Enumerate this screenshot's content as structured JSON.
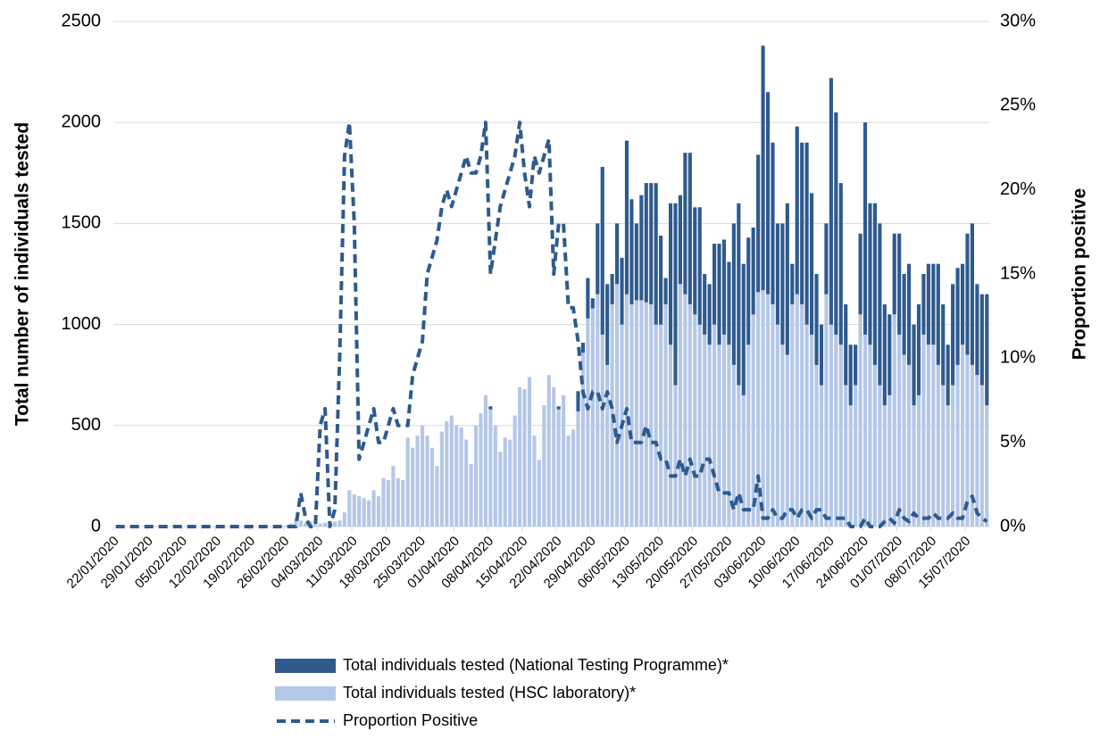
{
  "chart_data": {
    "type": "bar",
    "stacked": true,
    "y_label": "Total number of individuals tested",
    "y2_label": "Proportion positive",
    "categories": [
      "22/01/2020",
      null,
      null,
      null,
      null,
      null,
      null,
      "29/01/2020",
      null,
      null,
      null,
      null,
      null,
      null,
      "05/02/2020",
      null,
      null,
      null,
      null,
      null,
      null,
      "12/02/2020",
      null,
      null,
      null,
      null,
      null,
      null,
      "19/02/2020",
      null,
      null,
      null,
      null,
      null,
      null,
      "26/02/2020",
      null,
      null,
      null,
      null,
      null,
      null,
      "04/03/2020",
      null,
      null,
      null,
      null,
      null,
      null,
      "11/03/2020",
      null,
      null,
      null,
      null,
      null,
      null,
      "18/03/2020",
      null,
      null,
      null,
      null,
      null,
      null,
      "25/03/2020",
      null,
      null,
      null,
      null,
      null,
      null,
      "01/04/2020",
      null,
      null,
      null,
      null,
      null,
      null,
      "08/04/2020",
      null,
      null,
      null,
      null,
      null,
      null,
      "15/04/2020",
      null,
      null,
      null,
      null,
      null,
      null,
      "22/04/2020",
      null,
      null,
      null,
      null,
      null,
      null,
      "29/04/2020",
      null,
      null,
      null,
      null,
      null,
      null,
      "06/05/2020",
      null,
      null,
      null,
      null,
      null,
      null,
      "13/05/2020",
      null,
      null,
      null,
      null,
      null,
      null,
      "20/05/2020",
      null,
      null,
      null,
      null,
      null,
      null,
      "27/05/2020",
      null,
      null,
      null,
      null,
      null,
      null,
      "03/06/2020",
      null,
      null,
      null,
      null,
      null,
      null,
      "10/06/2020",
      null,
      null,
      null,
      null,
      null,
      null,
      "17/06/2020",
      null,
      null,
      null,
      null,
      null,
      null,
      "24/06/2020",
      null,
      null,
      null,
      null,
      null,
      null,
      "01/07/2020",
      null,
      null,
      null,
      null,
      null,
      null,
      "08/07/2020",
      null,
      null,
      null,
      null,
      null,
      null,
      "15/07/2020",
      null,
      null,
      null,
      null
    ],
    "series": [
      {
        "name": "Total individuals tested (HSC laboratory)*",
        "type": "bar",
        "color": "#b4c7e7",
        "values": [
          0,
          0,
          0,
          0,
          0,
          0,
          0,
          0,
          0,
          0,
          0,
          0,
          0,
          0,
          0,
          0,
          0,
          0,
          0,
          0,
          0,
          0,
          0,
          0,
          0,
          0,
          0,
          0,
          0,
          0,
          0,
          0,
          0,
          0,
          0,
          5,
          15,
          40,
          30,
          20,
          25,
          20,
          15,
          20,
          25,
          25,
          30,
          70,
          180,
          160,
          150,
          140,
          130,
          180,
          150,
          240,
          230,
          300,
          240,
          230,
          440,
          390,
          450,
          500,
          450,
          390,
          300,
          470,
          520,
          550,
          500,
          490,
          430,
          310,
          500,
          560,
          650,
          580,
          500,
          370,
          440,
          430,
          550,
          690,
          680,
          740,
          450,
          330,
          600,
          750,
          690,
          580,
          650,
          450,
          480,
          570,
          860,
          1030,
          1080,
          1150,
          950,
          800,
          1100,
          1200,
          1000,
          1150,
          1100,
          1120,
          1120,
          1110,
          1100,
          1000,
          1000,
          1100,
          900,
          700,
          1200,
          1150,
          1100,
          1050,
          1000,
          950,
          900,
          1000,
          900,
          950,
          900,
          800,
          700,
          650,
          900,
          1050,
          1160,
          1170,
          1150,
          1100,
          1000,
          900,
          850,
          1100,
          1150,
          1100,
          1000,
          950,
          800,
          700,
          1150,
          1000,
          950,
          900,
          700,
          600,
          700,
          1050,
          950,
          900,
          800,
          700,
          600,
          650,
          1050,
          950,
          850,
          800,
          600,
          650,
          950,
          900,
          900,
          800,
          700,
          600,
          700,
          800,
          900,
          850,
          800,
          750,
          700,
          600
        ]
      },
      {
        "name": "Total individuals tested (National Testing Programme)*",
        "type": "bar",
        "color": "#2e5a8e",
        "values": [
          0,
          0,
          0,
          0,
          0,
          0,
          0,
          0,
          0,
          0,
          0,
          0,
          0,
          0,
          0,
          0,
          0,
          0,
          0,
          0,
          0,
          0,
          0,
          0,
          0,
          0,
          0,
          0,
          0,
          0,
          0,
          0,
          0,
          0,
          0,
          0,
          0,
          0,
          0,
          0,
          0,
          0,
          0,
          0,
          0,
          0,
          0,
          0,
          0,
          0,
          0,
          0,
          0,
          0,
          0,
          0,
          0,
          0,
          0,
          0,
          0,
          0,
          0,
          0,
          0,
          0,
          0,
          0,
          0,
          0,
          0,
          0,
          0,
          0,
          0,
          0,
          0,
          15,
          0,
          0,
          0,
          0,
          0,
          0,
          0,
          0,
          0,
          0,
          0,
          0,
          0,
          15,
          0,
          0,
          0,
          100,
          50,
          200,
          50,
          350,
          830,
          400,
          150,
          300,
          330,
          760,
          520,
          380,
          520,
          590,
          600,
          700,
          440,
          130,
          700,
          900,
          440,
          700,
          750,
          530,
          580,
          300,
          300,
          400,
          500,
          470,
          410,
          700,
          900,
          650,
          530,
          430,
          680,
          1210,
          1000,
          800,
          500,
          600,
          750,
          200,
          830,
          800,
          900,
          700,
          450,
          300,
          350,
          1220,
          1100,
          800,
          400,
          300,
          200,
          400,
          1050,
          700,
          800,
          800,
          500,
          400,
          400,
          500,
          400,
          500,
          400,
          450,
          300,
          400,
          400,
          500,
          400,
          300,
          500,
          480,
          400,
          600,
          700,
          450,
          450,
          550
        ]
      },
      {
        "name": "Proportion Positive",
        "type": "line",
        "axis": "y2",
        "color": "#2e5a8e",
        "line_style": "dashed",
        "values": [
          0,
          0,
          0,
          0,
          0,
          0,
          0,
          0,
          0,
          0,
          0,
          0,
          0,
          0,
          0,
          0,
          0,
          0,
          0,
          0,
          0,
          0,
          0,
          0,
          0,
          0,
          0,
          0,
          0,
          0,
          0,
          0,
          0,
          0,
          0,
          0,
          0,
          0,
          2,
          0.5,
          0,
          0,
          6,
          7,
          0,
          1,
          10,
          22,
          24,
          18,
          4,
          5,
          6,
          7,
          5,
          5,
          6,
          7,
          6,
          6,
          6,
          9,
          10,
          11,
          15,
          16,
          17,
          19,
          20,
          19,
          20,
          21,
          22,
          21,
          21,
          22,
          24,
          15,
          17,
          19,
          20,
          21,
          22,
          24,
          21,
          19,
          22,
          21,
          22,
          23,
          15,
          18,
          18,
          13,
          13,
          11,
          8,
          7,
          8,
          8,
          7,
          8,
          7,
          5,
          6,
          7,
          5,
          5,
          5,
          6,
          5,
          5,
          4,
          4,
          3,
          3,
          4,
          3,
          4,
          3,
          3,
          4,
          4,
          3,
          2,
          2,
          2,
          1,
          2,
          1,
          1,
          1,
          3,
          0.5,
          0.5,
          1,
          0.5,
          0.5,
          1,
          1,
          0.5,
          1,
          1,
          0.5,
          1,
          1,
          0.5,
          0.5,
          0.5,
          0.5,
          0.5,
          0,
          0,
          0,
          0.5,
          0,
          0,
          0,
          0.3,
          0.5,
          0.2,
          1,
          0.5,
          0.3,
          0.8,
          0.5,
          0.5,
          0.5,
          0.8,
          0.5,
          0.5,
          0.5,
          0.8,
          0.5,
          0.5,
          1.5,
          1.8,
          0.8,
          0.5,
          0.3
        ]
      }
    ],
    "ylim": [
      0,
      2500
    ],
    "yticks": [
      0,
      500,
      1000,
      1500,
      2000,
      2500
    ],
    "y2lim": [
      0,
      30
    ],
    "y2ticks": [
      {
        "value": 0,
        "label": "0%"
      },
      {
        "value": 5,
        "label": "5%"
      },
      {
        "value": 10,
        "label": "10%"
      },
      {
        "value": 15,
        "label": "15%"
      },
      {
        "value": 20,
        "label": "20%"
      },
      {
        "value": 25,
        "label": "25%"
      },
      {
        "value": 30,
        "label": "30%"
      }
    ],
    "grid": true,
    "legend": "bottom"
  }
}
